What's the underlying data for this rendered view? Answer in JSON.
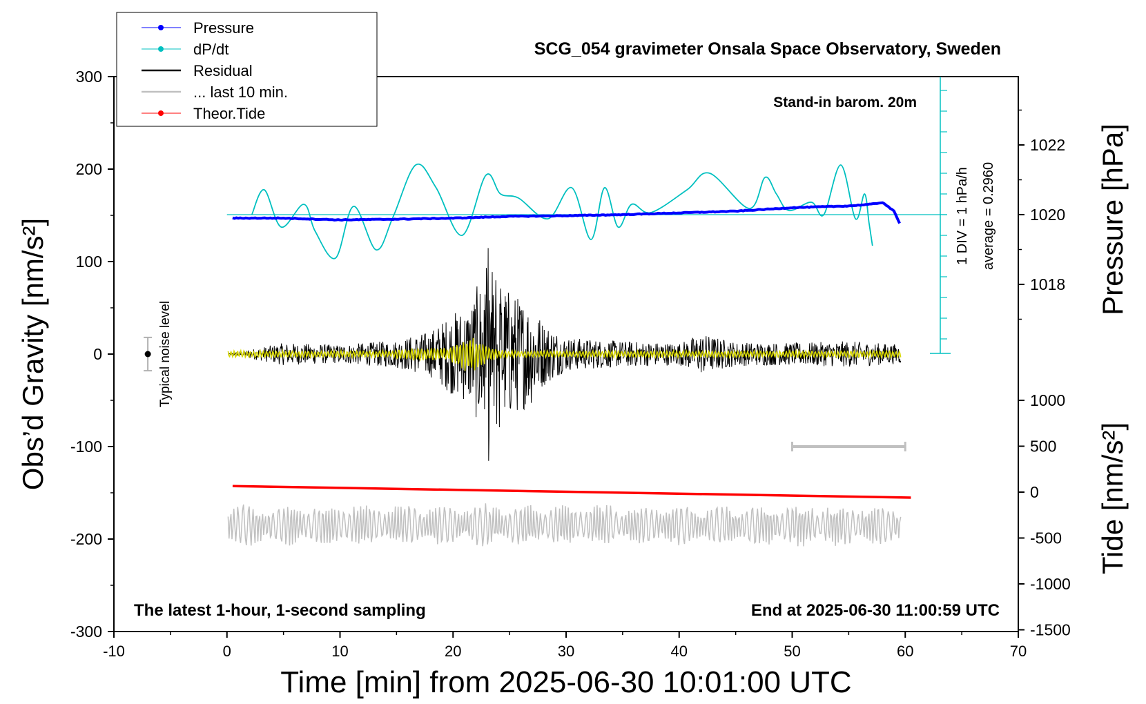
{
  "chart_data": {
    "type": "line",
    "title": "SCG_054 gravimeter Onsala Space Observatory, Sweden",
    "xlabel": "Time [min] from 2025-06-30 10:01:00 UTC",
    "ylabel_left": "Obs’d Gravity [nm/s²]",
    "ylabel_right_top": "Pressure [hPa]",
    "ylabel_right_bottom": "Tide [nm/s²]",
    "xlim": [
      -10,
      70
    ],
    "ylim_left": [
      -300,
      300
    ],
    "x_ticks": [
      "-10",
      "0",
      "10",
      "20",
      "30",
      "40",
      "50",
      "60",
      "70"
    ],
    "y_ticks_left": [
      "300",
      "200",
      "100",
      "0",
      "-100",
      "-200",
      "-300"
    ],
    "pressure_ticks": [
      "1022",
      "1020",
      "1018"
    ],
    "tide_ticks": [
      "1000",
      "500",
      "0",
      "-500",
      "-1000",
      "-1500"
    ],
    "annotations": {
      "barom": "Stand-in barom. 20m",
      "div": "1 DIV = 1 hPa/h",
      "average": "average = 0.2960",
      "noise": "Typical noise level",
      "latest": "The latest 1-hour, 1-second sampling",
      "end": "End at 2025-06-30 11:00:59 UTC"
    },
    "legend": [
      {
        "label": "Pressure",
        "color": "#0000ff",
        "marker": true
      },
      {
        "label": "dP/dt",
        "color": "#00c0c0",
        "marker": true
      },
      {
        "label": "Residual",
        "color": "#000000",
        "marker": false
      },
      {
        "label": "... last 10 min.",
        "color": "#c0c0c0",
        "marker": false
      },
      {
        "label": "Theor.Tide",
        "color": "#ff0000",
        "marker": true
      }
    ],
    "series": [
      {
        "name": "Pressure",
        "unit": "hPa",
        "color": "#0000ff",
        "x": [
          0.5,
          5,
          10,
          15,
          20,
          25,
          30,
          35,
          40,
          45,
          50,
          55,
          57,
          58,
          59,
          59.5
        ],
        "values": [
          1019.9,
          1019.9,
          1019.85,
          1019.87,
          1019.9,
          1019.95,
          1019.97,
          1020.0,
          1020.05,
          1020.1,
          1020.2,
          1020.25,
          1020.3,
          1020.35,
          1020.1,
          1019.75
        ]
      },
      {
        "name": "dP/dt",
        "unit": "hPa/h",
        "color": "#00c0c0",
        "x": [
          2.2,
          3.3,
          4.8,
          6.8,
          7.8,
          9.6,
          11.2,
          13.2,
          14.7,
          16.7,
          18.5,
          20.8,
          22.9,
          24.2,
          25.8,
          28.4,
          30.5,
          32.2,
          33.4,
          34.6,
          35.8,
          37.5,
          40.7,
          42.7,
          46.2,
          47.6,
          48.6,
          49.7,
          51.7,
          52.8,
          54.3,
          55.6,
          56.4,
          56.8,
          57.1
        ],
        "values": [
          0,
          1.2,
          -0.6,
          0.5,
          -0.8,
          -2.1,
          0.4,
          -1.7,
          -0.1,
          2.4,
          1.3,
          -1.0,
          1.9,
          1.0,
          0.8,
          -0.2,
          1.3,
          -1.2,
          1.3,
          -0.6,
          0.5,
          0.1,
          1.2,
          2.0,
          0.3,
          1.8,
          1.0,
          0.2,
          0.6,
          0.0,
          2.4,
          -0.2,
          1.0,
          -0.4,
          -1.5
        ]
      },
      {
        "name": "Residual",
        "unit": "nm/s²",
        "color": "#000000",
        "x": [
          0,
          5,
          10,
          15,
          18,
          20,
          21.5,
          22.5,
          23,
          23.4,
          23.8,
          24.5,
          25.5,
          27,
          28,
          30,
          35,
          40,
          42,
          45,
          50,
          55,
          60
        ],
        "values": [
          0,
          12,
          10,
          15,
          25,
          45,
          55,
          85,
          -115,
          105,
          -90,
          75,
          -65,
          55,
          35,
          18,
          14,
          12,
          22,
          13,
          12,
          14,
          10
        ]
      },
      {
        "name": "... last 10 min.",
        "unit": "nm/s²",
        "color": "#c0c0c0",
        "x": [
          0,
          10,
          20,
          30,
          40,
          50,
          60
        ],
        "values": [
          -185,
          -185,
          -185,
          -185,
          -185,
          -185,
          -185
        ]
      },
      {
        "name": "Theor.Tide",
        "unit": "nm/s²",
        "color": "#ff0000",
        "x": [
          0.5,
          60.5
        ],
        "values": [
          66,
          -60
        ]
      }
    ],
    "noise_bar": {
      "x": -7,
      "center": 0,
      "half_range": 18
    },
    "scale_bar": {
      "x_from": 50,
      "x_to": 60,
      "y": -100
    }
  },
  "colors": {
    "pressure": "#0000ff",
    "dpdt": "#00c0c0",
    "residual": "#000000",
    "filtered": "#d8d800",
    "last10": "#c0c0c0",
    "tide": "#ff0000"
  }
}
